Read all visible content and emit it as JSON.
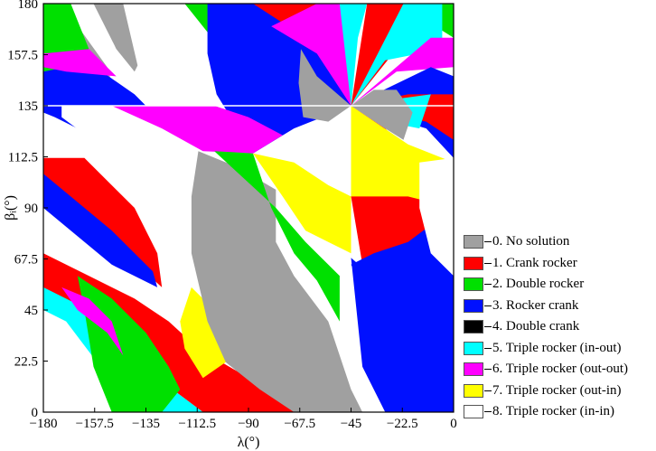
{
  "chart_data": {
    "type": "heatmap",
    "title": "",
    "xlabel": "λ(°)",
    "ylabel": "βᵢ(°)",
    "xlim": [
      -180,
      0
    ],
    "ylim": [
      0,
      180
    ],
    "xticks": [
      "-180",
      "-157.5",
      "-135",
      "-112.5",
      "-90",
      "-67.5",
      "-45",
      "-22.5",
      "0"
    ],
    "yticks": [
      "0",
      "22.5",
      "45",
      "67.5",
      "90",
      "112.5",
      "135",
      "157.5",
      "180"
    ],
    "legend_position": "right",
    "categories": [
      {
        "label": "0. No solution",
        "color": "#a0a0a0"
      },
      {
        "label": "1. Crank rocker",
        "color": "#ff0000"
      },
      {
        "label": "2. Double rocker",
        "color": "#00e000"
      },
      {
        "label": "3. Rocker crank",
        "color": "#0010ff"
      },
      {
        "label": "4. Double crank",
        "color": "#000000"
      },
      {
        "label": "5. Triple rocker (in-out)",
        "color": "#00ffff"
      },
      {
        "label": "6. Triple rocker (out-out)",
        "color": "#ff00ff"
      },
      {
        "label": "7. Triple rocker (out-in)",
        "color": "#ffff00"
      },
      {
        "label": "8. Triple rocker (in-in)",
        "color": "#ffffff"
      }
    ],
    "regions": [
      {
        "cat": 0,
        "pts": [
          [
            -180,
            180
          ],
          [
            -172,
            180
          ],
          [
            -152,
            152
          ],
          [
            -148,
            138
          ],
          [
            -170,
            135
          ],
          [
            -180,
            135
          ]
        ]
      },
      {
        "cat": 2,
        "pts": [
          [
            -180,
            180
          ],
          [
            -168,
            180
          ],
          [
            -160,
            160
          ],
          [
            -178,
            148
          ],
          [
            -180,
            150
          ]
        ]
      },
      {
        "cat": 3,
        "pts": [
          [
            -180,
            150
          ],
          [
            -160,
            154
          ],
          [
            -140,
            140
          ],
          [
            -135,
            135
          ],
          [
            -180,
            135
          ]
        ]
      },
      {
        "cat": 6,
        "pts": [
          [
            -180,
            158
          ],
          [
            -160,
            160
          ],
          [
            -148,
            148
          ],
          [
            -170,
            150
          ],
          [
            -180,
            152
          ]
        ]
      },
      {
        "cat": 0,
        "pts": [
          [
            -158,
            180
          ],
          [
            -145,
            180
          ],
          [
            -135,
            160
          ],
          [
            -140,
            150
          ],
          [
            -148,
            160
          ]
        ]
      },
      {
        "cat": 8,
        "pts": [
          [
            -145,
            180
          ],
          [
            -118,
            180
          ],
          [
            -108,
            158
          ],
          [
            -105,
            138
          ],
          [
            -135,
            135
          ],
          [
            -138,
            150
          ]
        ]
      },
      {
        "cat": 2,
        "pts": [
          [
            -118,
            180
          ],
          [
            -100,
            180
          ],
          [
            -96,
            172
          ],
          [
            -106,
            165
          ]
        ]
      },
      {
        "cat": 3,
        "pts": [
          [
            -108,
            180
          ],
          [
            -62,
            180
          ],
          [
            -48,
            162
          ],
          [
            -45,
            135
          ],
          [
            -70,
            125
          ],
          [
            -88,
            114
          ],
          [
            -104,
            140
          ],
          [
            -108,
            158
          ]
        ]
      },
      {
        "cat": 1,
        "pts": [
          [
            -88,
            180
          ],
          [
            -45,
            180
          ],
          [
            -45,
            135
          ],
          [
            -50,
            150
          ],
          [
            -65,
            165
          ]
        ]
      },
      {
        "cat": 5,
        "pts": [
          [
            -55,
            180
          ],
          [
            -38,
            180
          ],
          [
            -42,
            165
          ],
          [
            -45,
            135
          ]
        ]
      },
      {
        "cat": 6,
        "pts": [
          [
            -60,
            180
          ],
          [
            -50,
            180
          ],
          [
            -45,
            135
          ],
          [
            -60,
            158
          ],
          [
            -80,
            170
          ]
        ]
      },
      {
        "cat": 1,
        "pts": [
          [
            -38,
            180
          ],
          [
            -12,
            180
          ],
          [
            -25,
            160
          ],
          [
            -45,
            135
          ]
        ]
      },
      {
        "cat": 2,
        "pts": [
          [
            -12,
            180
          ],
          [
            0,
            180
          ],
          [
            0,
            165
          ],
          [
            -8,
            170
          ]
        ]
      },
      {
        "cat": 5,
        "pts": [
          [
            -22,
            180
          ],
          [
            -5,
            180
          ],
          [
            -5,
            160
          ],
          [
            -30,
            155
          ],
          [
            -45,
            135
          ]
        ]
      },
      {
        "cat": 6,
        "pts": [
          [
            -10,
            165
          ],
          [
            0,
            165
          ],
          [
            0,
            152
          ],
          [
            -25,
            150
          ],
          [
            -45,
            135
          ]
        ]
      },
      {
        "cat": 3,
        "pts": [
          [
            -45,
            135
          ],
          [
            -10,
            152
          ],
          [
            0,
            148
          ],
          [
            0,
            112
          ],
          [
            -12,
            125
          ]
        ]
      },
      {
        "cat": 1,
        "pts": [
          [
            -45,
            135
          ],
          [
            -20,
            140
          ],
          [
            0,
            140
          ],
          [
            0,
            120
          ],
          [
            -12,
            128
          ]
        ]
      },
      {
        "cat": 3,
        "pts": [
          [
            -180,
            135
          ],
          [
            -162,
            135
          ],
          [
            -150,
            128
          ],
          [
            -140,
            112
          ],
          [
            -120,
            100
          ],
          [
            -110,
            90
          ],
          [
            -145,
            115
          ],
          [
            -175,
            130
          ],
          [
            -180,
            132
          ]
        ]
      },
      {
        "cat": 8,
        "pts": [
          [
            -172,
            135
          ],
          [
            -135,
            135
          ],
          [
            -120,
            118
          ],
          [
            -115,
            110
          ],
          [
            -108,
            90
          ],
          [
            -112,
            75
          ],
          [
            -132,
            95
          ],
          [
            -152,
            115
          ],
          [
            -172,
            130
          ]
        ]
      },
      {
        "cat": 6,
        "pts": [
          [
            -150,
            135
          ],
          [
            -105,
            135
          ],
          [
            -90,
            130
          ],
          [
            -75,
            122
          ],
          [
            -88,
            114
          ],
          [
            -110,
            115
          ],
          [
            -128,
            125
          ]
        ]
      },
      {
        "cat": 1,
        "pts": [
          [
            -180,
            112
          ],
          [
            -162,
            112
          ],
          [
            -140,
            90
          ],
          [
            -130,
            70
          ],
          [
            -128,
            55
          ],
          [
            -150,
            75
          ],
          [
            -180,
            105
          ]
        ]
      },
      {
        "cat": 3,
        "pts": [
          [
            -180,
            105
          ],
          [
            -150,
            80
          ],
          [
            -132,
            62
          ],
          [
            -130,
            55
          ],
          [
            -150,
            65
          ],
          [
            -180,
            90
          ]
        ]
      },
      {
        "cat": 1,
        "pts": [
          [
            -180,
            70
          ],
          [
            -160,
            60
          ],
          [
            -140,
            50
          ],
          [
            -125,
            40
          ],
          [
            -112,
            28
          ],
          [
            -95,
            18
          ],
          [
            -75,
            5
          ],
          [
            -70,
            0
          ],
          [
            -110,
            0
          ],
          [
            -130,
            15
          ],
          [
            -160,
            40
          ],
          [
            -180,
            55
          ]
        ]
      },
      {
        "cat": 5,
        "pts": [
          [
            -180,
            55
          ],
          [
            -160,
            45
          ],
          [
            -140,
            32
          ],
          [
            -130,
            15
          ],
          [
            -110,
            0
          ],
          [
            -135,
            0
          ],
          [
            -155,
            20
          ],
          [
            -170,
            40
          ],
          [
            -180,
            45
          ]
        ]
      },
      {
        "cat": 2,
        "pts": [
          [
            -165,
            60
          ],
          [
            -150,
            50
          ],
          [
            -135,
            35
          ],
          [
            -125,
            20
          ],
          [
            -120,
            10
          ],
          [
            -128,
            0
          ],
          [
            -150,
            0
          ],
          [
            -158,
            20
          ],
          [
            -162,
            45
          ]
        ]
      },
      {
        "cat": 6,
        "pts": [
          [
            -172,
            55
          ],
          [
            -160,
            50
          ],
          [
            -150,
            40
          ],
          [
            -145,
            25
          ],
          [
            -152,
            35
          ],
          [
            -165,
            45
          ]
        ]
      },
      {
        "cat": 7,
        "pts": [
          [
            -115,
            55
          ],
          [
            -102,
            42
          ],
          [
            -95,
            32
          ],
          [
            -100,
            22
          ],
          [
            -110,
            15
          ],
          [
            -118,
            28
          ],
          [
            -120,
            40
          ]
        ]
      },
      {
        "cat": 0,
        "pts": [
          [
            -112,
            115
          ],
          [
            -95,
            108
          ],
          [
            -78,
            98
          ],
          [
            -78,
            75
          ],
          [
            -70,
            60
          ],
          [
            -55,
            40
          ],
          [
            -45,
            10
          ],
          [
            -40,
            0
          ],
          [
            -70,
            0
          ],
          [
            -85,
            10
          ],
          [
            -100,
            22
          ],
          [
            -108,
            40
          ],
          [
            -115,
            70
          ],
          [
            -115,
            95
          ]
        ]
      },
      {
        "cat": 2,
        "pts": [
          [
            -105,
            115
          ],
          [
            -88,
            114
          ],
          [
            -80,
            90
          ],
          [
            -70,
            70
          ],
          [
            -60,
            58
          ],
          [
            -50,
            40
          ],
          [
            -50,
            60
          ],
          [
            -65,
            75
          ],
          [
            -78,
            90
          ]
        ]
      },
      {
        "cat": 7,
        "pts": [
          [
            -88,
            114
          ],
          [
            -70,
            110
          ],
          [
            -55,
            100
          ],
          [
            -45,
            95
          ],
          [
            -45,
            70
          ],
          [
            -55,
            75
          ],
          [
            -65,
            80
          ],
          [
            -75,
            95
          ]
        ]
      },
      {
        "cat": 1,
        "pts": [
          [
            -45,
            135
          ],
          [
            -30,
            125
          ],
          [
            -20,
            115
          ],
          [
            -10,
            105
          ],
          [
            0,
            95
          ],
          [
            0,
            0
          ],
          [
            -10,
            0
          ],
          [
            -25,
            20
          ],
          [
            -35,
            45
          ],
          [
            -40,
            65
          ],
          [
            -45,
            95
          ]
        ]
      },
      {
        "cat": 3,
        "pts": [
          [
            -45,
            65
          ],
          [
            -35,
            45
          ],
          [
            -25,
            25
          ],
          [
            -15,
            10
          ],
          [
            0,
            0
          ],
          [
            0,
            90
          ],
          [
            -20,
            75
          ],
          [
            -35,
            70
          ]
        ]
      },
      {
        "cat": 7,
        "pts": [
          [
            -45,
            135
          ],
          [
            -20,
            118
          ],
          [
            0,
            110
          ],
          [
            0,
            90
          ],
          [
            -20,
            95
          ],
          [
            -45,
            95
          ]
        ]
      },
      {
        "cat": 8,
        "pts": [
          [
            -15,
            110
          ],
          [
            0,
            112
          ],
          [
            0,
            60
          ],
          [
            -10,
            70
          ],
          [
            -15,
            90
          ]
        ]
      },
      {
        "cat": 5,
        "pts": [
          [
            -45,
            135
          ],
          [
            -25,
            138
          ],
          [
            -10,
            140
          ],
          [
            -15,
            125
          ],
          [
            -30,
            128
          ]
        ]
      },
      {
        "cat": 3,
        "pts": [
          [
            -45,
            68
          ],
          [
            -30,
            55
          ],
          [
            -20,
            40
          ],
          [
            -12,
            25
          ],
          [
            -5,
            10
          ],
          [
            0,
            0
          ],
          [
            -30,
            0
          ],
          [
            -40,
            20
          ]
        ]
      },
      {
        "cat": 0,
        "pts": [
          [
            -67,
            160
          ],
          [
            -60,
            148
          ],
          [
            -45,
            135
          ],
          [
            -55,
            128
          ],
          [
            -66,
            130
          ],
          [
            -68,
            145
          ]
        ]
      },
      {
        "cat": 0,
        "pts": [
          [
            -45,
            135
          ],
          [
            -35,
            142
          ],
          [
            -25,
            142
          ],
          [
            -18,
            132
          ],
          [
            -22,
            120
          ],
          [
            -30,
            125
          ]
        ]
      }
    ]
  },
  "legend": [
    {
      "dash": "–",
      "text": "0. No solution",
      "color": "#a0a0a0"
    },
    {
      "dash": "–",
      "text": "1. Crank rocker",
      "color": "#ff0000"
    },
    {
      "dash": "–",
      "text": "2. Double rocker",
      "color": "#00e000"
    },
    {
      "dash": "–",
      "text": "3. Rocker crank",
      "color": "#0010ff"
    },
    {
      "dash": "–",
      "text": "4. Double crank",
      "color": "#000000"
    },
    {
      "dash": "–",
      "text": "5. Triple rocker (in-out)",
      "color": "#00ffff"
    },
    {
      "dash": "–",
      "text": "6. Triple rocker (out-out)",
      "color": "#ff00ff"
    },
    {
      "dash": "–",
      "text": "7. Triple rocker (out-in)",
      "color": "#ffff00"
    },
    {
      "dash": "–",
      "text": "8. Triple rocker (in-in)",
      "color": "#ffffff"
    }
  ]
}
